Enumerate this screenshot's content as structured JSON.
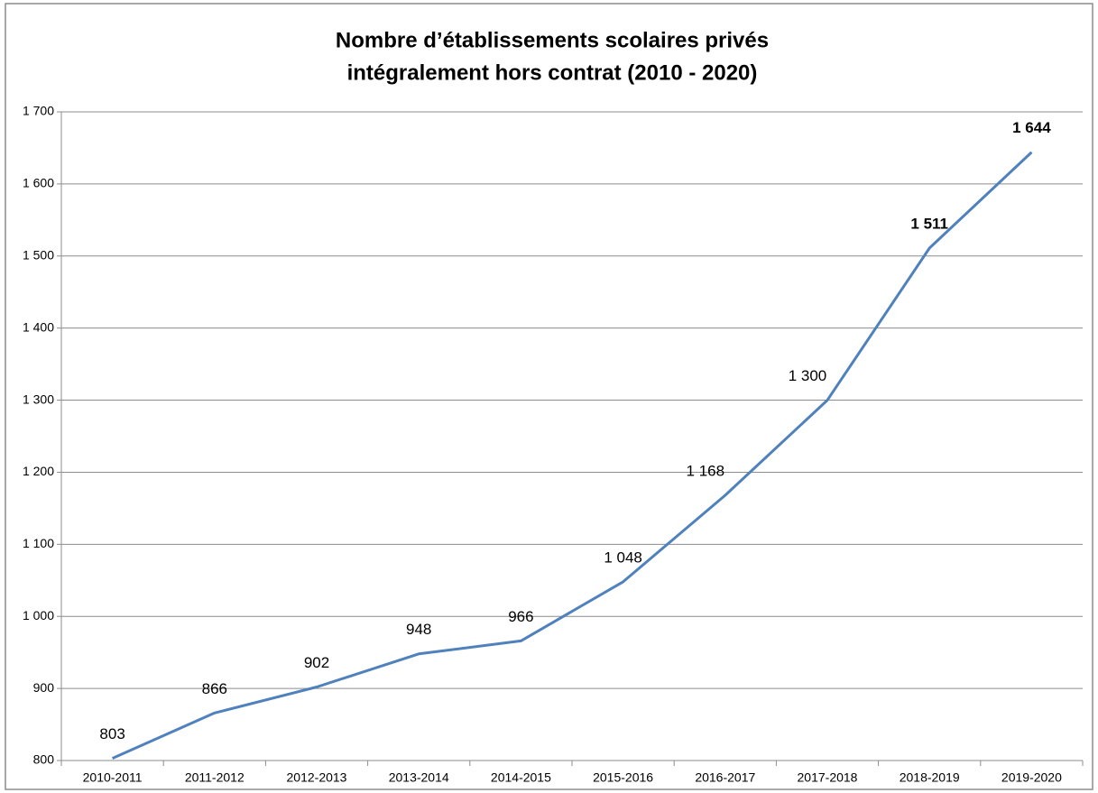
{
  "chart_data": {
    "type": "line",
    "title": [
      "Nombre d’établissements scolaires privés",
      "intégralement hors contrat (2010 - 2020)"
    ],
    "categories": [
      "2010-2011",
      "2011-2012",
      "2012-2013",
      "2013-2014",
      "2014-2015",
      "2015-2016",
      "2016-2017",
      "2017-2018",
      "2018-2019",
      "2019-2020"
    ],
    "series": [
      {
        "name": "Nombre d’établissements",
        "color": "#4f81bd",
        "values": [
          803,
          866,
          902,
          948,
          966,
          1048,
          1168,
          1300,
          1511,
          1644
        ],
        "value_labels": [
          "803",
          "866",
          "902",
          "948",
          "966",
          "1 048",
          "1 168",
          "1 300",
          "1 511",
          "1 644"
        ]
      }
    ],
    "ylim": [
      800,
      1700
    ],
    "yticks": [
      800,
      900,
      {
        "value": 1000,
        "label": "1 000"
      },
      {
        "value": 1100,
        "label": "1 100"
      },
      {
        "value": 1200,
        "label": "1 200"
      },
      {
        "value": 1300,
        "label": "1 300"
      },
      {
        "value": 1400,
        "label": "1 400"
      },
      {
        "value": 1500,
        "label": "1 500"
      },
      {
        "value": 1600,
        "label": "1 600"
      },
      {
        "value": 1700,
        "label": "1 700"
      }
    ],
    "grid": true
  }
}
